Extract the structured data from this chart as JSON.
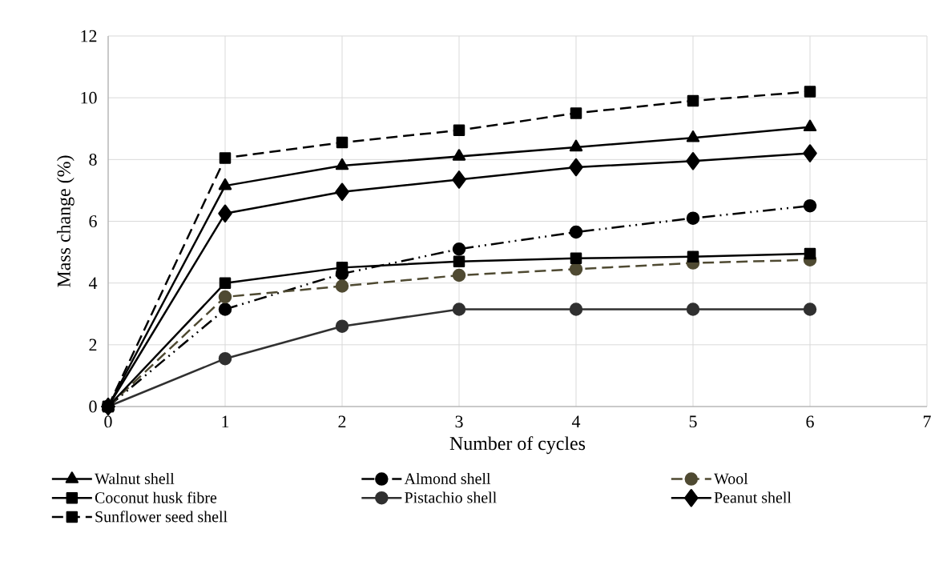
{
  "chart_data": {
    "type": "line",
    "xlabel": "Number of cycles",
    "ylabel": "Mass change (%)",
    "x": [
      0,
      1,
      2,
      3,
      4,
      5,
      6
    ],
    "xlim": [
      0,
      7
    ],
    "xticks": [
      0,
      1,
      2,
      3,
      4,
      5,
      6,
      7
    ],
    "ylim": [
      0,
      12
    ],
    "yticks": [
      0,
      2,
      4,
      6,
      8,
      10,
      12
    ],
    "grid": true,
    "legend": "bottom",
    "series": [
      {
        "name": "Walnut shell",
        "color": "#000000",
        "marker": "triangle",
        "line_style": "solid",
        "values": [
          0,
          7.15,
          7.8,
          8.1,
          8.4,
          8.7,
          9.05
        ]
      },
      {
        "name": "Almond shell",
        "color": "#000000",
        "marker": "circle",
        "line_style": "dashdot",
        "values": [
          0,
          3.15,
          4.3,
          5.1,
          5.65,
          6.1,
          6.5
        ]
      },
      {
        "name": "Wool",
        "color": "#4f4a32",
        "marker": "circle",
        "line_style": "dashed",
        "values": [
          0,
          3.55,
          3.9,
          4.25,
          4.45,
          4.65,
          4.75
        ]
      },
      {
        "name": "Coconut husk fibre",
        "color": "#000000",
        "marker": "square",
        "line_style": "solid",
        "values": [
          0,
          4.0,
          4.5,
          4.7,
          4.8,
          4.85,
          4.95
        ]
      },
      {
        "name": "Pistachio shell",
        "color": "#303030",
        "marker": "circle",
        "line_style": "solid",
        "values": [
          0,
          1.55,
          2.6,
          3.15,
          3.15,
          3.15,
          3.15
        ]
      },
      {
        "name": "Peanut shell",
        "color": "#000000",
        "marker": "diamond",
        "line_style": "solid",
        "values": [
          0,
          6.25,
          6.95,
          7.35,
          7.75,
          7.95,
          8.2
        ]
      },
      {
        "name": "Sunflower seed shell",
        "color": "#000000",
        "marker": "square",
        "line_style": "dashed",
        "values": [
          0,
          8.05,
          8.55,
          8.95,
          9.5,
          9.9,
          10.2
        ]
      }
    ]
  }
}
